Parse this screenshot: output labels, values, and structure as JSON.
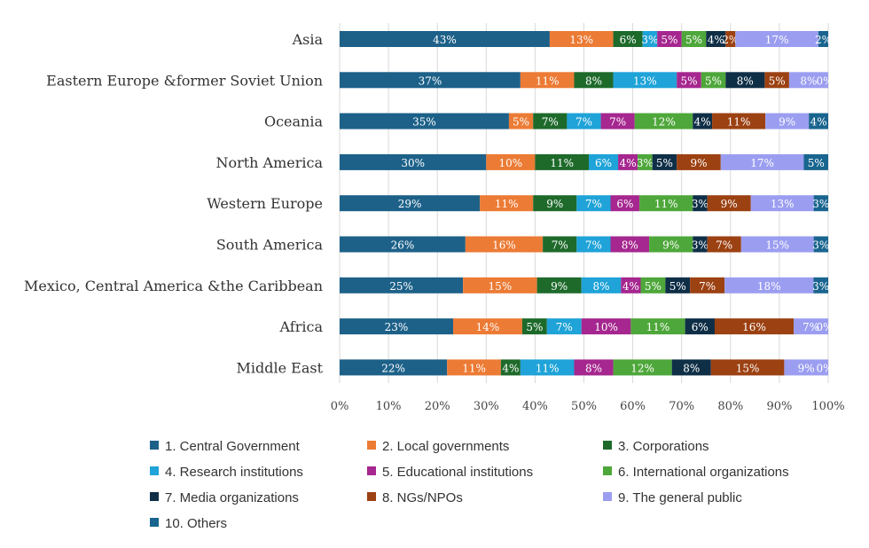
{
  "chart_data": {
    "type": "bar",
    "orientation": "horizontal",
    "stacked": true,
    "percent_stacked": true,
    "categories": [
      "Asia",
      "Eastern Europe &former Soviet Union",
      "Oceania",
      "North America",
      "Western Europe",
      "South America",
      "Mexico, Central America &the Caribbean",
      "Africa",
      "Middle East"
    ],
    "series": [
      {
        "name": "1. Central Government",
        "color": "#1d6189",
        "values": [
          43,
          37,
          35,
          30,
          29,
          26,
          25,
          23,
          22
        ],
        "labels": [
          "43%",
          "37%",
          "35%",
          "30%",
          "29%",
          "26%",
          "25%",
          "23%",
          "22%"
        ]
      },
      {
        "name": "2. Local governments",
        "color": "#ec7b35",
        "values": [
          13,
          11,
          5,
          10,
          11,
          16,
          15,
          14,
          11
        ],
        "labels": [
          "13%",
          "11%",
          "5%",
          "10%",
          "11%",
          "16%",
          "15%",
          "14%",
          "11%"
        ]
      },
      {
        "name": "3. Corporations",
        "color": "#1e6a2b",
        "values": [
          6,
          8,
          7,
          11,
          9,
          7,
          9,
          5,
          4
        ],
        "labels": [
          "6%",
          "8%",
          "7%",
          "11%",
          "9%",
          "7%",
          "9%",
          "5%",
          "4%"
        ]
      },
      {
        "name": "4. Research institutions",
        "color": "#1fa3d8",
        "values": [
          3,
          13,
          7,
          6,
          7,
          7,
          8,
          7,
          11
        ],
        "labels": [
          "3%",
          "13%",
          "7%",
          "6%",
          "7%",
          "7%",
          "8%",
          "7%",
          "11%"
        ]
      },
      {
        "name": "5. Educational institutions",
        "color": "#a5278f",
        "values": [
          5,
          5,
          7,
          4,
          6,
          8,
          4,
          10,
          8
        ],
        "labels": [
          "5%",
          "5%",
          "7%",
          "4%",
          "6%",
          "8%",
          "4%",
          "10%",
          "8%"
        ]
      },
      {
        "name": "6. International organizations",
        "color": "#4ea73a",
        "values": [
          5,
          5,
          12,
          3,
          11,
          9,
          5,
          11,
          12
        ],
        "labels": [
          "5%",
          "5%",
          "12%",
          "3%",
          "11%",
          "9%",
          "5%",
          "11%",
          "12%"
        ]
      },
      {
        "name": "7. Media organizations",
        "color": "#0f2f47",
        "values": [
          4,
          8,
          4,
          5,
          3,
          3,
          5,
          6,
          8
        ],
        "labels": [
          "4%",
          "8%",
          "4%",
          "5%",
          "3%",
          "3%",
          "5%",
          "6%",
          "8%"
        ]
      },
      {
        "name": "8. NGs/NPOs",
        "color": "#9c4112",
        "values": [
          2,
          5,
          11,
          9,
          9,
          7,
          7,
          16,
          15
        ],
        "labels": [
          "2%",
          "5%",
          "11%",
          "9%",
          "9%",
          "7%",
          "7%",
          "16%",
          "15%"
        ]
      },
      {
        "name": "9. The general public",
        "color": "#9b9ef0",
        "values": [
          17,
          8,
          9,
          17,
          13,
          15,
          18,
          7,
          9
        ],
        "labels": [
          "17%",
          "8%",
          "9%",
          "17%",
          "13%",
          "15%",
          "18%",
          "7%",
          "9%"
        ]
      },
      {
        "name": "10. Others",
        "color": "#19658f",
        "values": [
          2,
          0,
          4,
          5,
          3,
          3,
          3,
          0,
          0
        ],
        "labels": [
          "2%",
          "0%",
          "4%",
          "5%",
          "3%",
          "3%",
          "3%",
          "0%",
          "0%"
        ]
      }
    ],
    "x_ticks": [
      "0%",
      "10%",
      "20%",
      "30%",
      "40%",
      "50%",
      "60%",
      "70%",
      "80%",
      "90%",
      "100%"
    ],
    "xlim": [
      0,
      100
    ],
    "grid": "vertical",
    "legend_position": "bottom",
    "gridline_color": "#d9d9d9"
  }
}
